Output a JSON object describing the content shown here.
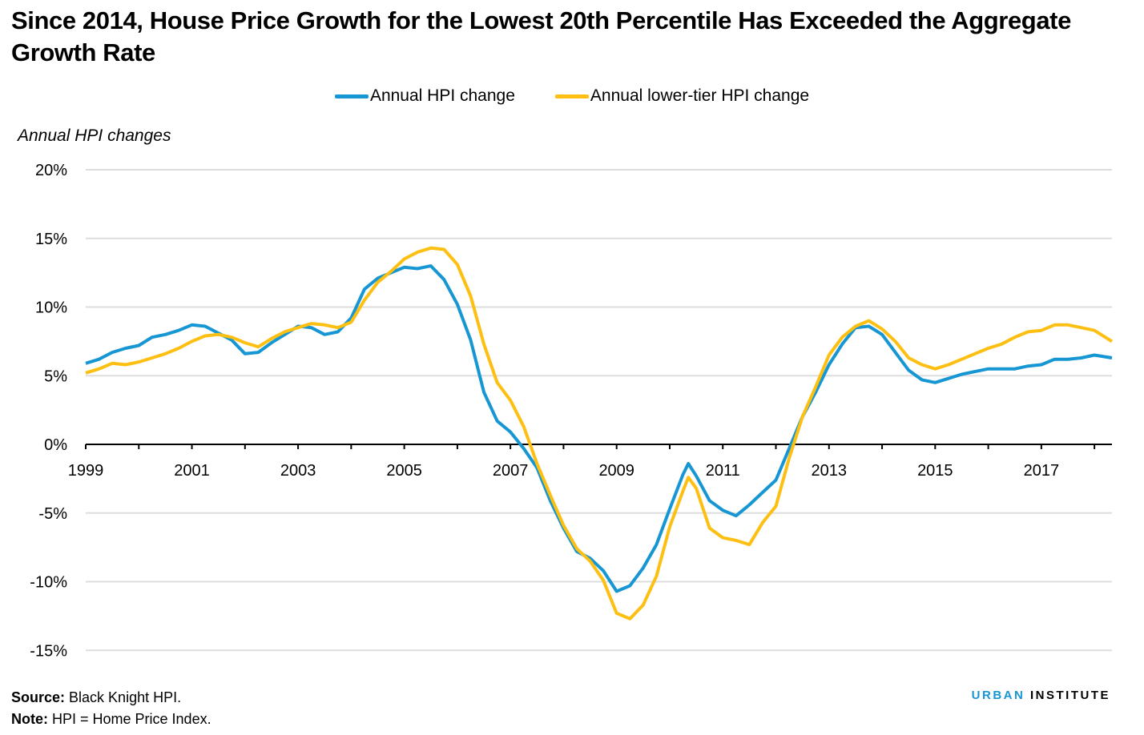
{
  "title": "Since 2014, House Price Growth for the Lowest 20th Percentile Has Exceeded the Aggregate Growth Rate",
  "footer": {
    "source_label": "Source:",
    "source_text": " Black Knight HPI.",
    "note_label": "Note:",
    "note_text": " HPI = Home Price Index."
  },
  "brand": {
    "part1": "URBAN",
    "part2": " INSTITUTE",
    "accent_color": "#1696d2"
  },
  "chart_data": {
    "type": "line",
    "title": "Since 2014, House Price Growth for the Lowest 20th Percentile Has Exceeded the Aggregate Growth Rate",
    "xlabel": "",
    "ylabel": "Annual HPI changes",
    "xlim": [
      1999,
      2018.33
    ],
    "ylim": [
      -15,
      20
    ],
    "yticks": [
      20,
      15,
      10,
      5,
      0,
      -5,
      -10,
      -15
    ],
    "ytick_labels": [
      "20%",
      "15%",
      "10%",
      "5%",
      "0%",
      "-5%",
      "-10%",
      "-15%"
    ],
    "xticks": [
      1999,
      2001,
      2003,
      2005,
      2007,
      2009,
      2011,
      2013,
      2015,
      2017
    ],
    "xtick_labels": [
      "1999",
      "2001",
      "2003",
      "2005",
      "2007",
      "2009",
      "2011",
      "2013",
      "2015",
      "2017"
    ],
    "grid": true,
    "legend_position": "top-center",
    "x": [
      1999.0,
      1999.25,
      1999.5,
      1999.75,
      2000.0,
      2000.25,
      2000.5,
      2000.75,
      2001.0,
      2001.25,
      2001.5,
      2001.75,
      2002.0,
      2002.25,
      2002.5,
      2002.75,
      2003.0,
      2003.25,
      2003.5,
      2003.75,
      2004.0,
      2004.25,
      2004.5,
      2004.75,
      2005.0,
      2005.25,
      2005.5,
      2005.75,
      2006.0,
      2006.25,
      2006.5,
      2006.75,
      2007.0,
      2007.25,
      2007.5,
      2007.75,
      2008.0,
      2008.25,
      2008.5,
      2008.75,
      2009.0,
      2009.25,
      2009.5,
      2009.75,
      2010.0,
      2010.25,
      2010.35,
      2010.5,
      2010.75,
      2011.0,
      2011.25,
      2011.5,
      2011.75,
      2012.0,
      2012.25,
      2012.5,
      2012.75,
      2013.0,
      2013.25,
      2013.5,
      2013.75,
      2014.0,
      2014.25,
      2014.5,
      2014.75,
      2015.0,
      2015.25,
      2015.5,
      2015.75,
      2016.0,
      2016.25,
      2016.5,
      2016.75,
      2017.0,
      2017.25,
      2017.5,
      2017.75,
      2018.0,
      2018.33
    ],
    "series": [
      {
        "name": "Annual HPI change",
        "color": "#1696d2",
        "values": [
          5.9,
          6.2,
          6.7,
          7.0,
          7.2,
          7.8,
          8.0,
          8.3,
          8.7,
          8.6,
          8.1,
          7.6,
          6.6,
          6.7,
          7.4,
          8.0,
          8.6,
          8.5,
          8.0,
          8.2,
          9.2,
          11.3,
          12.1,
          12.5,
          12.9,
          12.8,
          13.0,
          12.0,
          10.2,
          7.6,
          3.8,
          1.7,
          0.9,
          -0.3,
          -1.7,
          -4.1,
          -6.1,
          -7.8,
          -8.3,
          -9.2,
          -10.7,
          -10.3,
          -9.0,
          -7.3,
          -4.7,
          -2.2,
          -1.4,
          -2.3,
          -4.1,
          -4.8,
          -5.2,
          -4.4,
          -3.5,
          -2.6,
          -0.3,
          2.0,
          3.8,
          5.8,
          7.3,
          8.5,
          8.6,
          8.0,
          6.7,
          5.4,
          4.7,
          4.5,
          4.8,
          5.1,
          5.3,
          5.5,
          5.5,
          5.5,
          5.7,
          5.8,
          6.2,
          6.2,
          6.3,
          6.5,
          6.3
        ]
      },
      {
        "name": "Annual lower-tier HPI change",
        "color": "#fdbf11",
        "values": [
          5.2,
          5.5,
          5.9,
          5.8,
          6.0,
          6.3,
          6.6,
          7.0,
          7.5,
          7.9,
          8.0,
          7.8,
          7.4,
          7.1,
          7.7,
          8.2,
          8.5,
          8.8,
          8.7,
          8.5,
          8.9,
          10.5,
          11.8,
          12.6,
          13.5,
          14.0,
          14.3,
          14.2,
          13.1,
          10.8,
          7.3,
          4.5,
          3.2,
          1.3,
          -1.4,
          -3.7,
          -5.9,
          -7.6,
          -8.5,
          -9.9,
          -12.3,
          -12.7,
          -11.7,
          -9.6,
          -6.0,
          -3.4,
          -2.4,
          -3.2,
          -6.1,
          -6.8,
          -7.0,
          -7.3,
          -5.7,
          -4.5,
          -1.0,
          2.0,
          4.2,
          6.5,
          7.8,
          8.6,
          9.0,
          8.4,
          7.5,
          6.3,
          5.8,
          5.5,
          5.8,
          6.2,
          6.6,
          7.0,
          7.3,
          7.8,
          8.2,
          8.3,
          8.7,
          8.7,
          8.5,
          8.3,
          7.5
        ]
      }
    ]
  }
}
